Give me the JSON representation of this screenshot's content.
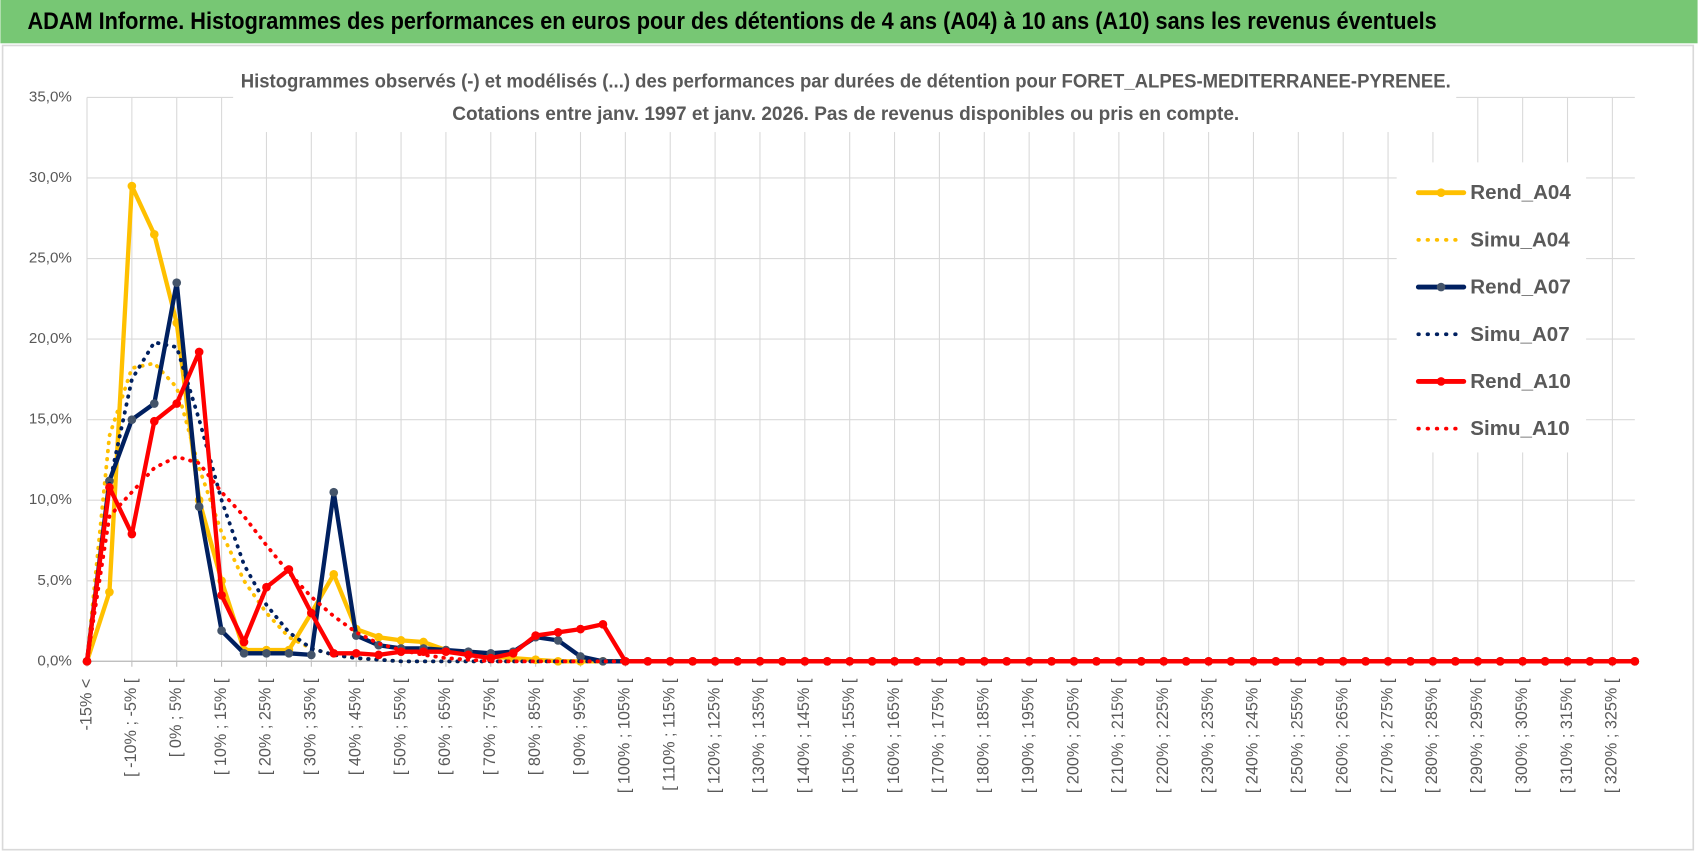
{
  "header": {
    "title": "ADAM Informe. Histogrammes des performances en euros pour des détentions de 4 ans (A04) à 10 ans (A10) sans les revenus éventuels"
  },
  "chart_data": {
    "type": "line",
    "title": "Histogrammes observés (-) et modélisés (...) des performances par durées de détention pour FORET_ALPES-MEDITERRANEE-PYRENEE.",
    "subtitle": "Cotations entre janv. 1997 et janv. 2026. Pas de revenus disponibles ou pris en compte.",
    "categories": [
      "-15% <",
      null,
      "[ -10% ; -5% [",
      null,
      "[ 0% ; 5% [",
      null,
      "[ 10% ; 15% [",
      null,
      "[ 20% ; 25% [",
      null,
      "[ 30% ; 35% [",
      null,
      "[ 40% ; 45% [",
      null,
      "[ 50% ; 55% [",
      null,
      "[ 60% ; 65% [",
      null,
      "[ 70% ; 75% [",
      null,
      "[ 80% ; 85% [",
      null,
      "[ 90% ; 95% [",
      null,
      "[ 100% ; 105% [",
      null,
      "[ 110% ; 115% [",
      null,
      "[ 120% ; 125% [",
      null,
      "[ 130% ; 135% [",
      null,
      "[ 140% ; 145% [",
      null,
      "[ 150% ; 155% [",
      null,
      "[ 160% ; 165% [",
      null,
      "[ 170% ; 175% [",
      null,
      "[ 180% ; 185% [",
      null,
      "[ 190% ; 195% [",
      null,
      "[ 200% ; 205% [",
      null,
      "[ 210% ; 215% [",
      null,
      "[ 220% ; 225% [",
      null,
      "[ 230% ; 235% [",
      null,
      "[ 240% ; 245% [",
      null,
      "[ 250% ; 255% [",
      null,
      "[ 260% ; 265% [",
      null,
      "[ 270% ; 275% [",
      null,
      "[ 280% ; 285% [",
      null,
      "[ 290% ; 295% [",
      null,
      "[ 300% ; 305% [",
      null,
      "[ 310% ; 315% [",
      null,
      "[ 320% ; 325% [",
      null
    ],
    "series": [
      {
        "name": "Rend_A04",
        "color": "#FFC000",
        "line_style": "solid",
        "markers": true,
        "values": [
          0,
          4.3,
          29.5,
          26.5,
          21,
          10,
          5,
          0.7,
          0.7,
          0.7,
          3,
          5.4,
          2,
          1.5,
          1.3,
          1.2,
          0.7,
          0.5,
          0.3,
          0.2,
          0.1,
          0,
          0,
          0,
          0,
          0,
          0,
          0,
          0,
          0,
          0,
          0,
          0,
          0,
          0,
          0,
          0,
          0,
          0,
          0,
          0,
          0,
          0,
          0,
          0,
          0,
          0,
          0,
          0,
          0,
          0,
          0,
          0,
          0,
          0,
          0,
          0,
          0,
          0,
          0,
          0,
          0,
          0,
          0,
          0,
          0,
          0,
          0,
          0,
          0
        ]
      },
      {
        "name": "Simu_A04",
        "color": "#FFC000",
        "line_style": "dotted",
        "markers": false,
        "values": [
          0,
          14,
          18.2,
          18.5,
          17,
          12,
          8,
          5,
          3,
          1.5,
          0.8,
          0.4,
          0.2,
          0.1,
          0,
          0,
          0,
          0,
          0,
          0,
          0,
          0,
          0,
          0,
          0,
          0,
          0,
          0,
          0,
          0,
          0,
          0,
          0,
          0,
          0,
          0,
          0,
          0,
          0,
          0,
          0,
          0,
          0,
          0,
          0,
          0,
          0,
          0,
          0,
          0,
          0,
          0,
          0,
          0,
          0,
          0,
          0,
          0,
          0,
          0,
          0,
          0,
          0,
          0,
          0,
          0,
          0,
          0,
          0,
          0
        ]
      },
      {
        "name": "Rend_A07",
        "color": "#002060",
        "line_style": "solid",
        "markers": true,
        "values": [
          0,
          11.2,
          15,
          16,
          23.5,
          9.6,
          1.9,
          0.5,
          0.5,
          0.5,
          0.4,
          10.5,
          1.6,
          1,
          0.8,
          0.8,
          0.7,
          0.6,
          0.5,
          0.6,
          1.5,
          1.3,
          0.3,
          0,
          0,
          0,
          0,
          0,
          0,
          0,
          0,
          0,
          0,
          0,
          0,
          0,
          0,
          0,
          0,
          0,
          0,
          0,
          0,
          0,
          0,
          0,
          0,
          0,
          0,
          0,
          0,
          0,
          0,
          0,
          0,
          0,
          0,
          0,
          0,
          0,
          0,
          0,
          0,
          0,
          0,
          0,
          0,
          0,
          0,
          0
        ]
      },
      {
        "name": "Simu_A07",
        "color": "#002060",
        "line_style": "dotted",
        "markers": false,
        "values": [
          0,
          11,
          17.5,
          19.8,
          19.5,
          15,
          10,
          6,
          3.5,
          1.8,
          0.8,
          0.4,
          0.2,
          0.1,
          0,
          0,
          0,
          0,
          0,
          0,
          0,
          0,
          0,
          0,
          0,
          0,
          0,
          0,
          0,
          0,
          0,
          0,
          0,
          0,
          0,
          0,
          0,
          0,
          0,
          0,
          0,
          0,
          0,
          0,
          0,
          0,
          0,
          0,
          0,
          0,
          0,
          0,
          0,
          0,
          0,
          0,
          0,
          0,
          0,
          0,
          0,
          0,
          0,
          0,
          0,
          0,
          0,
          0,
          0,
          0
        ]
      },
      {
        "name": "Rend_A10",
        "color": "#FF0000",
        "line_style": "solid",
        "markers": true,
        "values": [
          0,
          10.8,
          7.9,
          14.9,
          16,
          19.2,
          4.1,
          1.2,
          4.6,
          5.7,
          3,
          0.5,
          0.5,
          0.4,
          0.6,
          0.6,
          0.6,
          0.4,
          0.2,
          0.5,
          1.6,
          1.8,
          2,
          2.3,
          0,
          0,
          0,
          0,
          0,
          0,
          0,
          0,
          0,
          0,
          0,
          0,
          0,
          0,
          0,
          0,
          0,
          0,
          0,
          0,
          0,
          0,
          0,
          0,
          0,
          0,
          0,
          0,
          0,
          0,
          0,
          0,
          0,
          0,
          0,
          0,
          0,
          0,
          0,
          0,
          0,
          0,
          0,
          0,
          0,
          0
        ]
      },
      {
        "name": "Simu_A10",
        "color": "#FF0000",
        "line_style": "dotted",
        "markers": false,
        "values": [
          0,
          9,
          10.5,
          12,
          12.7,
          12.3,
          10.5,
          9,
          7.2,
          5.5,
          4,
          2.8,
          1.8,
          1.1,
          0.7,
          0.4,
          0.2,
          0.1,
          0,
          0,
          0,
          0,
          0,
          0,
          0,
          0,
          0,
          0,
          0,
          0,
          0,
          0,
          0,
          0,
          0,
          0,
          0,
          0,
          0,
          0,
          0,
          0,
          0,
          0,
          0,
          0,
          0,
          0,
          0,
          0,
          0,
          0,
          0,
          0,
          0,
          0,
          0,
          0,
          0,
          0,
          0,
          0,
          0,
          0,
          0,
          0,
          0,
          0,
          0,
          0
        ]
      }
    ],
    "ylim": [
      0,
      35
    ],
    "yticks": [
      {
        "value": 0,
        "label": "0,0%"
      },
      {
        "value": 5,
        "label": "5,0%"
      },
      {
        "value": 10,
        "label": "10,0%"
      },
      {
        "value": 15,
        "label": "15,0%"
      },
      {
        "value": 20,
        "label": "20,0%"
      },
      {
        "value": 25,
        "label": "25,0%"
      },
      {
        "value": 30,
        "label": "30,0%"
      },
      {
        "value": 35,
        "label": "35,0%"
      }
    ],
    "grid": true,
    "legend": "right"
  }
}
